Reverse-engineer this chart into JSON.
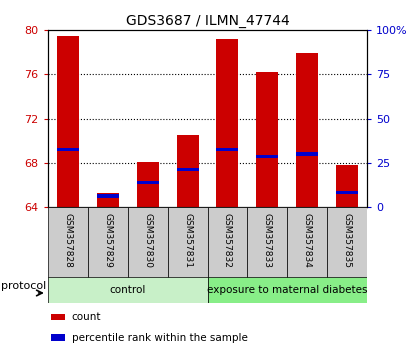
{
  "title": "GDS3687 / ILMN_47744",
  "samples": [
    "GSM357828",
    "GSM357829",
    "GSM357830",
    "GSM357831",
    "GSM357832",
    "GSM357833",
    "GSM357834",
    "GSM357835"
  ],
  "count_values": [
    79.5,
    65.3,
    68.1,
    70.5,
    79.2,
    76.2,
    77.9,
    67.8
  ],
  "percentile_values": [
    69.2,
    65.0,
    66.2,
    67.4,
    69.2,
    68.6,
    68.8,
    65.3
  ],
  "ylim_left": [
    64,
    80
  ],
  "ylim_right": [
    0,
    100
  ],
  "yticks_left": [
    64,
    68,
    72,
    76,
    80
  ],
  "yticks_right": [
    0,
    25,
    50,
    75,
    100
  ],
  "ytick_labels_right": [
    "0",
    "25",
    "50",
    "75",
    "100%"
  ],
  "bar_color": "#cc0000",
  "percentile_color": "#0000cc",
  "bar_width": 0.55,
  "groups": [
    {
      "label": "control",
      "start": 0,
      "end": 4,
      "color": "#c8f0c8"
    },
    {
      "label": "exposure to maternal diabetes",
      "start": 4,
      "end": 8,
      "color": "#88ee88"
    }
  ],
  "protocol_label": "protocol",
  "legend_items": [
    {
      "label": "count",
      "color": "#cc0000"
    },
    {
      "label": "percentile rank within the sample",
      "color": "#0000cc"
    }
  ],
  "tick_color_left": "#cc0000",
  "tick_color_right": "#0000cc",
  "base_value": 64,
  "pct_bar_height": 0.3,
  "figsize": [
    4.15,
    3.54
  ],
  "dpi": 100
}
